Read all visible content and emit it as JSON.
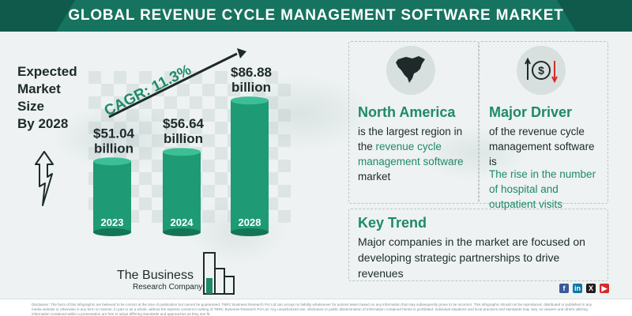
{
  "header": {
    "title": "GLOBAL REVENUE CYCLE MANAGEMENT SOFTWARE MARKET"
  },
  "left_label": {
    "line1": "Expected",
    "line2": "Market",
    "line3": "Size",
    "line4": "By 2028"
  },
  "cagr_label": "CAGR: 11.3%",
  "chart_data": {
    "type": "bar",
    "title": "",
    "categories": [
      "2023",
      "2024",
      "2028"
    ],
    "values": [
      51.04,
      56.64,
      86.88
    ],
    "value_labels": [
      {
        "amount": "$51.04",
        "unit": "billion"
      },
      {
        "amount": "$56.64",
        "unit": "billion"
      },
      {
        "amount": "$86.88",
        "unit": "billion"
      }
    ],
    "ylim": [
      0,
      100
    ],
    "grid": false,
    "colors": {
      "bar": "#1e9a74",
      "bar_top": "#3dbf96",
      "bar_dark": "#137556"
    }
  },
  "region": {
    "heading": "North America",
    "line1": "is the largest region in",
    "line2_prefix": "the ",
    "line2_highlight": "revenue cycle",
    "line3_highlight": "management software",
    "line4": "market",
    "icon": "north-america-map-icon"
  },
  "driver": {
    "heading": "Major Driver",
    "line1": "of the revenue cycle",
    "line2": "management software",
    "line3": "is",
    "detail1": "The rise in the number",
    "detail2": "of hospital and",
    "detail3": "outpatient visits",
    "icon": "money-exchange-icon"
  },
  "trend": {
    "heading": "Key Trend",
    "line1": "Major companies in the market are focused on",
    "line2": "developing strategic partnerships to drive",
    "line3": "revenues"
  },
  "logo": {
    "name": "The Business",
    "sub": "Research Company"
  },
  "social": {
    "facebook": "f",
    "linkedin": "in",
    "x": "X",
    "youtube": "▶"
  },
  "disclaimer": "Disclaimer: The facts of this infographic are believed to be correct at the time of publication but cannot be guaranteed. TBRC Business Research Pvt Ltd can accept no liability whatsoever for actions taken based on any information that may subsequently prove to be incorrect. This infographic should not be reproduced, distributed or published in any media website or otherwise in any form or manner, in part or as a whole, without the express consent in writing of TBRC Business Research Pvt Ltd. Any unauthorized use, disclosure or public dissemination of information contained herein is prohibited. Individual situations and local practices and standards may vary, so viewers and others utilizing information contained within a presentation are free to adopt differing standards and approaches as they see fit.",
  "colors": {
    "brand": "#16735f",
    "accent": "#1e8a66"
  }
}
